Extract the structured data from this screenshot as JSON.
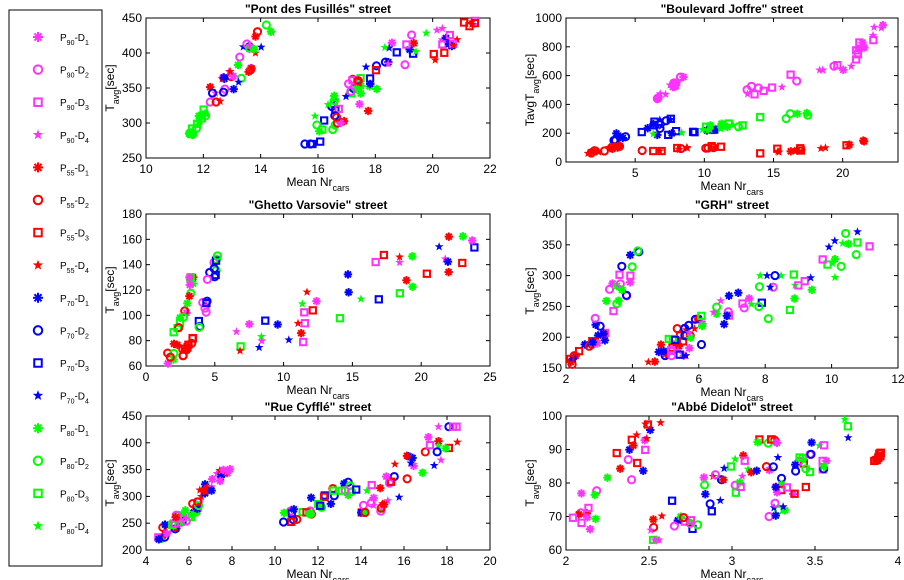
{
  "legend": {
    "entries": [
      {
        "id": "p90d1",
        "main": "P",
        "s1": "90",
        "mid": "-D",
        "s2": "1",
        "marker": "asterisk",
        "color": "#ff33ff"
      },
      {
        "id": "p90d2",
        "main": "P",
        "s1": "90",
        "mid": "-D",
        "s2": "2",
        "marker": "circle",
        "color": "#ff33ff"
      },
      {
        "id": "p90d3",
        "main": "P",
        "s1": "90",
        "mid": "-D",
        "s2": "3",
        "marker": "square",
        "color": "#ff33ff"
      },
      {
        "id": "p90d4",
        "main": "P",
        "s1": "90",
        "mid": "-D",
        "s2": "4",
        "marker": "star",
        "color": "#ff33ff"
      },
      {
        "id": "p55d1",
        "main": "P",
        "s1": "55",
        "mid": "-D",
        "s2": "1",
        "marker": "asterisk",
        "color": "#ff0000"
      },
      {
        "id": "p55d2",
        "main": "P",
        "s1": "55",
        "mid": "-D",
        "s2": "2",
        "marker": "circle",
        "color": "#ff0000"
      },
      {
        "id": "p55d3",
        "main": "P",
        "s1": "55",
        "mid": "-D",
        "s2": "3",
        "marker": "square",
        "color": "#ff0000"
      },
      {
        "id": "p55d4",
        "main": "P",
        "s1": "55",
        "mid": "-D",
        "s2": "4",
        "marker": "star",
        "color": "#ff0000"
      },
      {
        "id": "p70d1",
        "main": "P",
        "s1": "70",
        "mid": "-D",
        "s2": "1",
        "marker": "asterisk",
        "color": "#0000ff"
      },
      {
        "id": "p70d2",
        "main": "P",
        "s1": "70",
        "mid": "-D",
        "s2": "2",
        "marker": "circle",
        "color": "#0000ff"
      },
      {
        "id": "p70d3",
        "main": "P",
        "s1": "70",
        "mid": "-D",
        "s2": "3",
        "marker": "square",
        "color": "#0000ff"
      },
      {
        "id": "p70d4",
        "main": "P",
        "s1": "70",
        "mid": "-D",
        "s2": "4",
        "marker": "star",
        "color": "#0000ff"
      },
      {
        "id": "p80d1",
        "main": "P",
        "s1": "80",
        "mid": "-D",
        "s2": "1",
        "marker": "asterisk",
        "color": "#00ff00"
      },
      {
        "id": "p80d2",
        "main": "P",
        "s1": "80",
        "mid": "-D",
        "s2": "2",
        "marker": "circle",
        "color": "#00ff00"
      },
      {
        "id": "p80d3",
        "main": "P",
        "s1": "80",
        "mid": "-D",
        "s2": "3",
        "marker": "square",
        "color": "#00ff00"
      },
      {
        "id": "p80d4",
        "main": "P",
        "s1": "80",
        "mid": "-D",
        "s2": "4",
        "marker": "star",
        "color": "#00ff00"
      }
    ]
  },
  "chart_data": [
    {
      "type": "scatter",
      "title": "\"Pont des Fusillés\" street",
      "xlabel": {
        "main": "Mean Nr",
        "sub": "cars"
      },
      "ylabel": {
        "main": "T",
        "sub": "avg",
        "rest": "[sec]"
      },
      "xlim": [
        10,
        22
      ],
      "ylim": [
        250,
        450
      ],
      "xticks": [
        10,
        12,
        14,
        16,
        18,
        20,
        22
      ],
      "yticks": [
        250,
        300,
        350,
        400,
        450
      ],
      "clusters": [
        {
          "x": [
            11.5,
            12.1
          ],
          "y": [
            280,
            320
          ],
          "series": [
            "p80d1",
            "p80d2",
            "p80d3"
          ]
        },
        {
          "x": [
            12.2,
            14.5
          ],
          "y": [
            330,
            440
          ],
          "series": [
            "p90d1",
            "p90d2",
            "p90d4",
            "p55d1",
            "p55d2",
            "p55d4",
            "p70d1",
            "p70d2",
            "p70d4",
            "p80d1",
            "p80d2"
          ]
        },
        {
          "x": [
            15.5,
            18.0
          ],
          "y": [
            270,
            380
          ],
          "series": [
            "p80d1",
            "p80d2",
            "p80d3",
            "p80d4",
            "p70d2",
            "p70d3",
            "p70d4"
          ]
        },
        {
          "x": [
            16.5,
            20.5
          ],
          "y": [
            300,
            460
          ],
          "series": [
            "p90d1",
            "p90d2",
            "p90d3",
            "p90d4",
            "p55d1",
            "p55d2",
            "p55d3",
            "p70d1",
            "p70d2",
            "p70d3",
            "p70d4",
            "p80d1",
            "p80d4"
          ]
        },
        {
          "x": [
            20.0,
            21.5
          ],
          "y": [
            390,
            450
          ],
          "series": [
            "p55d3",
            "p55d4",
            "p70d1",
            "p90d3"
          ]
        }
      ]
    },
    {
      "type": "scatter",
      "title": "\"Boulevard Joffre\" street",
      "xlabel": {
        "main": "Mean Nr",
        "sub": "cars"
      },
      "ylabel": {
        "main": "TavgT",
        "sub": "avg",
        "rest": "[sec]"
      },
      "xlim": [
        0,
        24
      ],
      "ylim": [
        0,
        1000
      ],
      "xticks": [
        5,
        10,
        15,
        20
      ],
      "yticks": [
        0,
        200,
        400,
        600,
        800,
        1000
      ],
      "clusters": [
        {
          "x": [
            6.5,
            8.5
          ],
          "y": [
            440,
            590
          ],
          "series": [
            "p90d1",
            "p90d2",
            "p90d4"
          ]
        },
        {
          "x": [
            13.0,
            20.0
          ],
          "y": [
            470,
            680
          ],
          "series": [
            "p90d2",
            "p90d3",
            "p90d4"
          ]
        },
        {
          "x": [
            20.0,
            23.0
          ],
          "y": [
            640,
            950
          ],
          "series": [
            "p90d1",
            "p90d3",
            "p90d4"
          ]
        },
        {
          "x": [
            3.0,
            8.0
          ],
          "y": [
            150,
            300
          ],
          "series": [
            "p70d1",
            "p70d2",
            "p70d3",
            "p70d4"
          ]
        },
        {
          "x": [
            6.0,
            11.0
          ],
          "y": [
            180,
            240
          ],
          "series": [
            "p70d1",
            "p70d3",
            "p80d4"
          ]
        },
        {
          "x": [
            10.0,
            17.5
          ],
          "y": [
            230,
            340
          ],
          "series": [
            "p80d1",
            "p80d2",
            "p80d3",
            "p80d4"
          ]
        },
        {
          "x": [
            1.5,
            4.0
          ],
          "y": [
            60,
            110
          ],
          "series": [
            "p55d1",
            "p55d2",
            "p55d4"
          ]
        },
        {
          "x": [
            4.5,
            11.5
          ],
          "y": [
            70,
            110
          ],
          "series": [
            "p55d2",
            "p55d3",
            "p55d4"
          ]
        },
        {
          "x": [
            14.0,
            22.0
          ],
          "y": [
            60,
            150
          ],
          "series": [
            "p55d1",
            "p55d3",
            "p55d4"
          ]
        }
      ]
    },
    {
      "type": "scatter",
      "title": "\"Ghetto Varsovie\"  street",
      "xlabel": {
        "main": "Mean Nr",
        "sub": "cars"
      },
      "ylabel": {
        "main": "T",
        "sub": "avg",
        "rest": "[sec]"
      },
      "xlim": [
        0,
        25
      ],
      "ylim": [
        60,
        180
      ],
      "xticks": [
        0,
        5,
        10,
        15,
        20,
        25
      ],
      "yticks": [
        60,
        80,
        100,
        120,
        140,
        160,
        180
      ],
      "clusters": [
        {
          "x": [
            1.5,
            3.5
          ],
          "y": [
            62,
            130
          ],
          "series": [
            "p80d1",
            "p80d2",
            "p80d3",
            "p90d1",
            "p55d1",
            "p55d2"
          ]
        },
        {
          "x": [
            2.5,
            3.5
          ],
          "y": [
            68,
            82
          ],
          "series": [
            "p55d2",
            "p55d3"
          ]
        },
        {
          "x": [
            3.8,
            5.2
          ],
          "y": [
            90,
            147
          ],
          "series": [
            "p90d2",
            "p70d2",
            "p70d3",
            "p80d2"
          ]
        },
        {
          "x": [
            6.0,
            24.5
          ],
          "y": [
            72,
            165
          ],
          "series": [
            "p90d3",
            "p90d4",
            "p55d1",
            "p55d3",
            "p55d4",
            "p70d1",
            "p70d3",
            "p70d4",
            "p80d1",
            "p80d3",
            "p80d4",
            "p90d1"
          ]
        }
      ]
    },
    {
      "type": "scatter",
      "title": "\"GRH\" street",
      "xlabel": {
        "main": "Mean Nr",
        "sub": "cars"
      },
      "ylabel": {
        "main": "T",
        "sub": "avg",
        "rest": "[sec]"
      },
      "xlim": [
        2,
        12
      ],
      "ylim": [
        150,
        400
      ],
      "xticks": [
        2,
        4,
        6,
        8,
        10,
        12
      ],
      "yticks": [
        150,
        200,
        250,
        300,
        350,
        400
      ],
      "clusters": [
        {
          "x": [
            2.0,
            3.2
          ],
          "y": [
            155,
            205
          ],
          "series": [
            "p55d1",
            "p55d2",
            "p55d3",
            "p70d1"
          ]
        },
        {
          "x": [
            2.8,
            4.2
          ],
          "y": [
            190,
            340
          ],
          "series": [
            "p90d1",
            "p90d2",
            "p90d3",
            "p70d1",
            "p70d2",
            "p80d1",
            "p80d2"
          ]
        },
        {
          "x": [
            4.4,
            6.0
          ],
          "y": [
            150,
            230
          ],
          "series": [
            "p55d1",
            "p55d2",
            "p55d3",
            "p55d4",
            "p70d1",
            "p70d2"
          ]
        },
        {
          "x": [
            5.0,
            8.5
          ],
          "y": [
            170,
            300
          ],
          "series": [
            "p90d1",
            "p90d2",
            "p90d3",
            "p90d4",
            "p70d1",
            "p70d2",
            "p70d3",
            "p70d4",
            "p80d1",
            "p80d2",
            "p80d3",
            "p80d4"
          ]
        },
        {
          "x": [
            8.0,
            11.2
          ],
          "y": [
            230,
            380
          ],
          "series": [
            "p80d1",
            "p80d2",
            "p80d3",
            "p80d4",
            "p90d3",
            "p70d4"
          ]
        }
      ]
    },
    {
      "type": "scatter",
      "title": "\"Rue Cyfflé\" street",
      "xlabel": {
        "main": "Mean Nr",
        "sub": "cars"
      },
      "ylabel": {
        "main": "T",
        "sub": "avg",
        "rest": "[sec]"
      },
      "xlim": [
        4,
        20
      ],
      "ylim": [
        200,
        450
      ],
      "xticks": [
        4,
        6,
        8,
        10,
        12,
        14,
        16,
        18,
        20
      ],
      "yticks": [
        200,
        250,
        300,
        350,
        400,
        450
      ],
      "clusters": [
        {
          "x": [
            4.5,
            6.5
          ],
          "y": [
            220,
            290
          ],
          "series": [
            "p90d1",
            "p90d2",
            "p90d3",
            "p55d1",
            "p55d2",
            "p70d1",
            "p70d2",
            "p80d1",
            "p80d2",
            "p80d3",
            "p80d4"
          ]
        },
        {
          "x": [
            6.5,
            8.0
          ],
          "y": [
            300,
            360
          ],
          "series": [
            "p90d1",
            "p90d4",
            "p55d1",
            "p55d4",
            "p70d1"
          ]
        },
        {
          "x": [
            10.0,
            14.0
          ],
          "y": [
            250,
            330
          ],
          "series": [
            "p80d1",
            "p80d2",
            "p80d3",
            "p70d1",
            "p70d2",
            "p70d3",
            "p90d2",
            "p55d2",
            "p55d3"
          ]
        },
        {
          "x": [
            14.0,
            18.5
          ],
          "y": [
            270,
            430
          ],
          "series": [
            "p90d1",
            "p90d2",
            "p90d3",
            "p90d4",
            "p55d1",
            "p55d2",
            "p55d3",
            "p55d4",
            "p70d1",
            "p70d2",
            "p70d4",
            "p80d1",
            "p80d4"
          ]
        }
      ]
    },
    {
      "type": "scatter",
      "title": "\"Abbé Didelot\" street",
      "xlabel": {
        "main": "Mean Nr",
        "sub": "cars"
      },
      "ylabel": {
        "main": "T",
        "sub": "avg",
        "rest": "[sec]"
      },
      "xlim": [
        2,
        4
      ],
      "ylim": [
        60,
        100
      ],
      "xticks": [
        2,
        2.5,
        3,
        3.5,
        4
      ],
      "yticks": [
        60,
        70,
        80,
        90,
        100
      ],
      "clusters": [
        {
          "x": [
            2.0,
            2.6
          ],
          "y": [
            65,
            98
          ],
          "series": [
            "p90d1",
            "p90d2",
            "p90d3",
            "p55d1",
            "p55d3",
            "p55d4",
            "p70d1",
            "p80d1"
          ]
        },
        {
          "x": [
            2.5,
            3.3
          ],
          "y": [
            63,
            93
          ],
          "series": [
            "p90d1",
            "p90d2",
            "p90d3",
            "p90d4",
            "p55d1",
            "p55d2",
            "p55d3",
            "p55d4",
            "p70d1",
            "p70d2",
            "p70d3",
            "p70d4",
            "p80d1",
            "p80d2",
            "p80d3",
            "p80d4"
          ]
        },
        {
          "x": [
            3.2,
            3.7
          ],
          "y": [
            70,
            99
          ],
          "series": [
            "p90d1",
            "p90d2",
            "p90d3",
            "p55d3",
            "p70d1",
            "p70d2",
            "p70d4",
            "p80d1",
            "p80d2",
            "p80d3",
            "p80d4"
          ]
        },
        {
          "x": [
            3.85,
            3.9
          ],
          "y": [
            86,
            89
          ],
          "series": [
            "p55d3"
          ]
        }
      ]
    }
  ]
}
